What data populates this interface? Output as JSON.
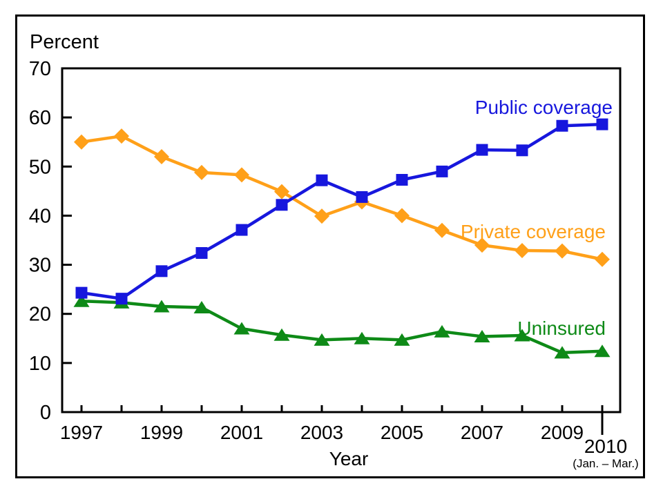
{
  "figure": {
    "y_axis_title": "Percent",
    "x_axis_title": "Year",
    "final_year_label": "2010",
    "final_year_sublabel": "(Jan. – Mar.)"
  },
  "colors": {
    "public_coverage": "#1717dd",
    "private_coverage": "#ffa019",
    "uninsured": "#0e8a17",
    "axis": "#000000",
    "background": "#ffffff"
  },
  "chart_data": {
    "type": "line",
    "title": "",
    "ylabel": "Percent",
    "xlabel": "Year",
    "grid": false,
    "legend_position": "inline-labels-right",
    "ylim": [
      0,
      70
    ],
    "y_ticks": [
      0,
      10,
      20,
      30,
      40,
      50,
      60,
      70
    ],
    "x": [
      1997,
      1998,
      1999,
      2000,
      2001,
      2002,
      2003,
      2004,
      2005,
      2006,
      2007,
      2008,
      2009,
      2010
    ],
    "x_labeled_ticks": [
      1997,
      1999,
      2001,
      2003,
      2005,
      2007,
      2009
    ],
    "x_note": "2010 (Jan. – Mar.)",
    "series": [
      {
        "name": "Public coverage",
        "color": "#1717dd",
        "marker": "square",
        "values": [
          24.3,
          23.1,
          28.7,
          32.4,
          37.1,
          42.2,
          47.2,
          43.8,
          47.3,
          49.0,
          53.4,
          53.3,
          58.3,
          58.6
        ]
      },
      {
        "name": "Private coverage",
        "color": "#ffa019",
        "marker": "diamond",
        "values": [
          55.0,
          56.2,
          52.0,
          48.8,
          48.3,
          44.9,
          39.9,
          42.8,
          40.0,
          37.0,
          34.0,
          32.9,
          32.8,
          31.1
        ]
      },
      {
        "name": "Uninsured",
        "color": "#0e8a17",
        "marker": "triangle",
        "values": [
          22.6,
          22.3,
          21.5,
          21.3,
          17.0,
          15.7,
          14.7,
          15.0,
          14.7,
          16.4,
          15.4,
          15.6,
          12.1,
          12.4
        ]
      }
    ]
  }
}
